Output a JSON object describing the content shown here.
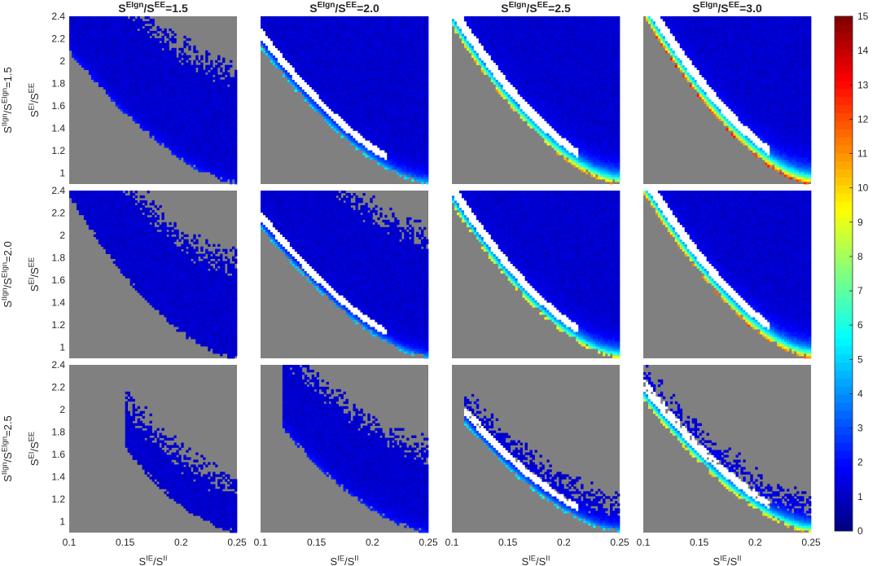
{
  "chart_data": {
    "type": "heatmap",
    "layout": "small-multiples grid, 3 rows x 4 columns, shared colorbar on right",
    "column_titles": [
      {
        "var": "S",
        "sup1": "EIgn",
        "mid": "/S",
        "sup2": "EE",
        "suffix": "=1.5"
      },
      {
        "var": "S",
        "sup1": "EIgn",
        "mid": "/S",
        "sup2": "EE",
        "suffix": "=2.0"
      },
      {
        "var": "S",
        "sup1": "EIgn",
        "mid": "/S",
        "sup2": "EE",
        "suffix": "=2.5"
      },
      {
        "var": "S",
        "sup1": "EIgn",
        "mid": "/S",
        "sup2": "EE",
        "suffix": "=3.0"
      }
    ],
    "row_labels": [
      {
        "var": "S",
        "sup1": "IIgn",
        "mid": "/S",
        "sup2": "EIgn",
        "suffix": "=1.5"
      },
      {
        "var": "S",
        "sup1": "IIgn",
        "mid": "/S",
        "sup2": "EIgn",
        "suffix": "=2.0"
      },
      {
        "var": "S",
        "sup1": "IIgn",
        "mid": "/S",
        "sup2": "EIgn",
        "suffix": "=2.5"
      }
    ],
    "xlabel": {
      "var": "S",
      "sup1": "IE",
      "mid": "/S",
      "sup2": "II"
    },
    "ylabel": {
      "var": "S",
      "sup1": "EI",
      "mid": "/S",
      "sup2": "EE"
    },
    "xlim": [
      0.1,
      0.25
    ],
    "ylim": [
      0.9,
      2.4
    ],
    "x_ticks": [
      0.1,
      0.15,
      0.2,
      0.25
    ],
    "x_tick_labels": [
      "0.1",
      "0.15",
      "0.2",
      "0.25"
    ],
    "y_ticks": [
      1,
      1.2,
      1.4,
      1.6,
      1.8,
      2,
      2.2,
      2.4
    ],
    "y_tick_labels": [
      "1",
      "1.2",
      "1.4",
      "1.6",
      "1.8",
      "2",
      "2.2",
      "2.4"
    ],
    "colorbar": {
      "colormap": "jet",
      "range": [
        0,
        15
      ],
      "ticks": [
        0,
        1,
        2,
        3,
        4,
        5,
        6,
        7,
        8,
        9,
        10,
        11,
        12,
        13,
        14,
        15
      ],
      "tick_labels": [
        "0",
        "1",
        "2",
        "3",
        "4",
        "5",
        "6",
        "7",
        "8",
        "9",
        "10",
        "11",
        "12",
        "13",
        "14",
        "15"
      ]
    },
    "background_color": "#808080",
    "saturated_color": "#ffffff",
    "panels": [
      {
        "row": 0,
        "col": 0,
        "lower_ridge_y_at_xmin": 2.08,
        "lower_ridge_curvature": 0.55,
        "upper_band_offset": 1.1,
        "edge_peak": 1.4,
        "dense_width": 0.35,
        "white_region": false
      },
      {
        "row": 0,
        "col": 1,
        "lower_ridge_y_at_xmin": 2.12,
        "lower_ridge_curvature": 0.6,
        "upper_band_offset": null,
        "edge_peak": 4.5,
        "dense_width": 0.9,
        "white_region": true
      },
      {
        "row": 0,
        "col": 2,
        "lower_ridge_y_at_xmin": 2.3,
        "lower_ridge_curvature": 0.65,
        "upper_band_offset": null,
        "edge_peak": 10.0,
        "dense_width": 1.5,
        "white_region": true
      },
      {
        "row": 0,
        "col": 3,
        "lower_ridge_y_at_xmin": 2.4,
        "lower_ridge_curvature": 0.62,
        "upper_band_offset": null,
        "edge_peak": 12.0,
        "dense_width": 1.6,
        "white_region": true
      },
      {
        "row": 1,
        "col": 0,
        "lower_ridge_y_at_xmin": 2.35,
        "lower_ridge_curvature": 0.7,
        "upper_band_offset": 0.95,
        "edge_peak": 0.8,
        "dense_width": 0.0,
        "white_region": false
      },
      {
        "row": 1,
        "col": 1,
        "lower_ridge_y_at_xmin": 2.07,
        "lower_ridge_curvature": 0.55,
        "upper_band_offset": 1.2,
        "edge_peak": 4.0,
        "dense_width": 0.6,
        "white_region": true
      },
      {
        "row": 1,
        "col": 2,
        "lower_ridge_y_at_xmin": 2.27,
        "lower_ridge_curvature": 0.65,
        "upper_band_offset": null,
        "edge_peak": 9.0,
        "dense_width": 1.2,
        "white_region": true
      },
      {
        "row": 1,
        "col": 3,
        "lower_ridge_y_at_xmin": 2.37,
        "lower_ridge_curvature": 0.62,
        "upper_band_offset": null,
        "edge_peak": 11.0,
        "dense_width": 1.5,
        "white_region": true
      },
      {
        "row": 2,
        "col": 0,
        "lower_ridge_y_at_xmin": 2.4,
        "lower_ridge_curvature": 0.7,
        "upper_band_offset": 0.55,
        "edge_peak": 0.6,
        "dense_width": 0.0,
        "white_region": false,
        "x_start": 0.15
      },
      {
        "row": 2,
        "col": 1,
        "lower_ridge_y_at_xmin": 2.05,
        "lower_ridge_curvature": 0.6,
        "upper_band_offset": 0.85,
        "edge_peak": 1.5,
        "dense_width": 0.5,
        "white_region": false,
        "x_start": 0.12
      },
      {
        "row": 2,
        "col": 2,
        "lower_ridge_y_at_xmin": 2.0,
        "lower_ridge_curvature": 0.6,
        "upper_band_offset": 0.35,
        "edge_peak": 4.5,
        "dense_width": 0.8,
        "white_region": true,
        "x_start": 0.11
      },
      {
        "row": 2,
        "col": 3,
        "lower_ridge_y_at_xmin": 2.08,
        "lower_ridge_curvature": 0.58,
        "upper_band_offset": 0.35,
        "edge_peak": 9.5,
        "dense_width": 1.2,
        "white_region": true
      }
    ]
  }
}
